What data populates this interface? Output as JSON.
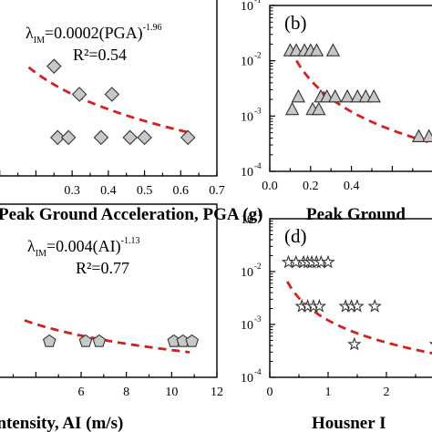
{
  "chart_data": [
    {
      "id": "a",
      "type": "scatter",
      "xlabel": "Peak Ground Acceleration, PGA (g)",
      "xlim": [
        0,
        0.7
      ],
      "xticks": [
        "0.3",
        "0.4",
        "0.5",
        "0.6",
        "0.7"
      ],
      "equation": {
        "base": "λ",
        "sub": "IM",
        "rhs": "=0.0002(PGA)",
        "sup": "-1.96"
      },
      "r2": "R²=0.54",
      "marker": "diamond",
      "series": [
        {
          "points": [
            [
              0.25,
              0.006
            ],
            [
              0.32,
              0.0021
            ],
            [
              0.41,
              0.0021
            ],
            [
              0.26,
              0.00042
            ],
            [
              0.29,
              0.00042
            ],
            [
              0.38,
              0.00042
            ],
            [
              0.46,
              0.00042
            ],
            [
              0.5,
              0.00042
            ],
            [
              0.62,
              0.00042
            ]
          ]
        }
      ],
      "fit": {
        "coef": 0.0002,
        "exp": -1.96
      }
    },
    {
      "id": "b",
      "type": "scatter",
      "panel_label": "(b)",
      "xlabel": "Peak Ground",
      "xlim": [
        0,
        1.0
      ],
      "ylim": [
        0.0001,
        0.1
      ],
      "xticks": [
        "0.0",
        "0.2",
        "0.4"
      ],
      "yticks": [
        "10",
        "10",
        "10",
        "10"
      ],
      "ytick_exps": [
        "-1",
        "-2",
        "-3",
        "-4"
      ],
      "marker": "triangle",
      "series": [
        {
          "points": [
            [
              0.1,
              0.015
            ],
            [
              0.13,
              0.015
            ],
            [
              0.17,
              0.015
            ],
            [
              0.2,
              0.015
            ],
            [
              0.23,
              0.015
            ],
            [
              0.31,
              0.015
            ],
            [
              0.14,
              0.0022
            ],
            [
              0.25,
              0.0022
            ],
            [
              0.28,
              0.0022
            ],
            [
              0.32,
              0.0022
            ],
            [
              0.38,
              0.0022
            ],
            [
              0.43,
              0.0022
            ],
            [
              0.47,
              0.0022
            ],
            [
              0.51,
              0.0022
            ],
            [
              0.11,
              0.0013
            ],
            [
              0.21,
              0.0013
            ],
            [
              0.24,
              0.0013
            ],
            [
              0.73,
              0.00042
            ],
            [
              0.78,
              0.00042
            ]
          ]
        }
      ],
      "fit": {
        "coef": 0.00021,
        "exp": -1.9
      }
    },
    {
      "id": "c",
      "type": "scatter",
      "xlabel": "Arias Intensity, AI (m/s)",
      "xlim": [
        0,
        12
      ],
      "xticks": [
        "6",
        "8",
        "10",
        "12"
      ],
      "equation": {
        "base": "λ",
        "sub": "IM",
        "rhs": "=0.004(AI)",
        "sup": "-1.13"
      },
      "r2": "R²=0.77",
      "marker": "pentagon",
      "series": [
        {
          "points": [
            [
              4.6,
              0.00042
            ],
            [
              6.2,
              0.00042
            ],
            [
              6.8,
              0.00042
            ],
            [
              10.1,
              0.00042
            ],
            [
              10.5,
              0.00042
            ],
            [
              10.9,
              0.00042
            ]
          ]
        }
      ],
      "fit": {
        "coef": 0.004,
        "exp": -1.13
      }
    },
    {
      "id": "d",
      "type": "scatter",
      "panel_label": "(d)",
      "xlabel": "Housner I",
      "xlim": [
        0,
        3.5
      ],
      "ylim": [
        0.0001,
        0.1
      ],
      "xticks": [
        "0",
        "1",
        "2"
      ],
      "yticks": [
        "10",
        "10",
        "10",
        "10"
      ],
      "ytick_exps": [
        "-1",
        "-2",
        "-3",
        "-4"
      ],
      "marker": "star",
      "series": [
        {
          "points": [
            [
              0.32,
              0.015
            ],
            [
              0.45,
              0.015
            ],
            [
              0.58,
              0.015
            ],
            [
              0.65,
              0.015
            ],
            [
              0.72,
              0.015
            ],
            [
              0.8,
              0.015
            ],
            [
              0.88,
              0.015
            ],
            [
              1.0,
              0.015
            ],
            [
              0.55,
              0.0022
            ],
            [
              0.65,
              0.0022
            ],
            [
              0.75,
              0.0022
            ],
            [
              0.85,
              0.0022
            ],
            [
              1.3,
              0.0022
            ],
            [
              1.4,
              0.0022
            ],
            [
              1.5,
              0.0022
            ],
            [
              1.8,
              0.0022
            ],
            [
              1.45,
              0.00042
            ],
            [
              2.85,
              0.00042
            ]
          ]
        }
      ],
      "fit": {
        "coef": 0.0012,
        "exp": -1.4
      }
    }
  ],
  "colors": {
    "fit_line": "#d42020",
    "marker_fill": "#c8c8c8",
    "marker_edge": "#333333",
    "axis": "#000000"
  }
}
